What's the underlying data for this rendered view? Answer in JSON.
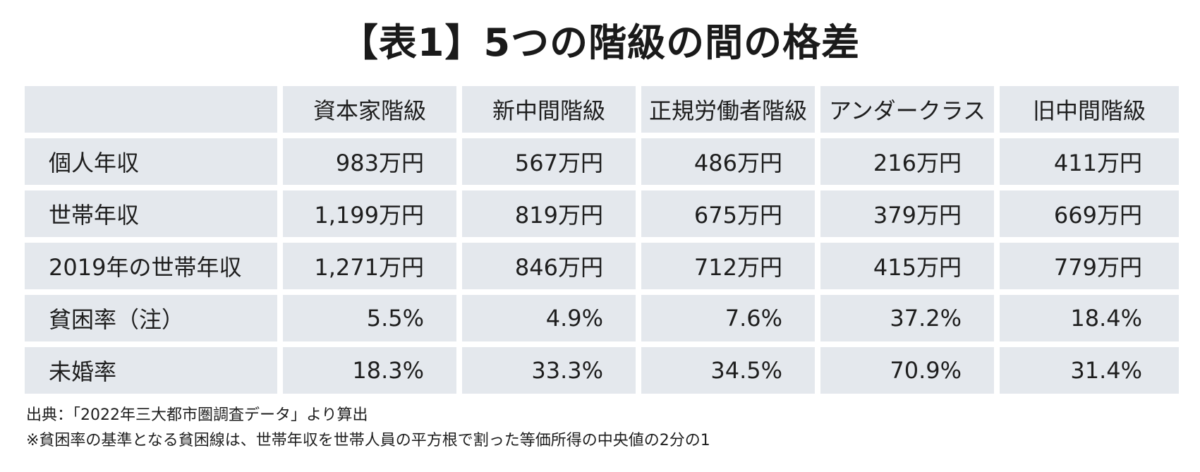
{
  "chart_data": {
    "type": "table",
    "title": "【表1】5つの階級の間の格差",
    "columns": [
      "",
      "資本家階級",
      "新中間階級",
      "正規労働者階級",
      "アンダークラス",
      "旧中間階級"
    ],
    "rows": [
      {
        "label": "個人年収",
        "values": [
          "983万円",
          "567万円",
          "486万円",
          "216万円",
          "411万円"
        ]
      },
      {
        "label": "世帯年収",
        "values": [
          "1,199万円",
          "819万円",
          "675万円",
          "379万円",
          "669万円"
        ]
      },
      {
        "label": "2019年の世帯年収",
        "values": [
          "1,271万円",
          "846万円",
          "712万円",
          "415万円",
          "779万円"
        ]
      },
      {
        "label": "貧困率（注）",
        "values": [
          "5.5%",
          "4.9%",
          "7.6%",
          "37.2%",
          "18.4%"
        ]
      },
      {
        "label": "未婚率",
        "values": [
          "18.3%",
          "33.3%",
          "34.5%",
          "70.9%",
          "31.4%"
        ]
      }
    ]
  },
  "notes": {
    "source": "出典：「2022年三大都市圏調査データ」より算出",
    "footnote": "※貧困率の基準となる貧困線は、世帯年収を世帯人員の平方根で割った等価所得の中央値の2分の1"
  },
  "colors": {
    "cell_background": "#e4e8ed",
    "text": "#1e1e1e"
  }
}
